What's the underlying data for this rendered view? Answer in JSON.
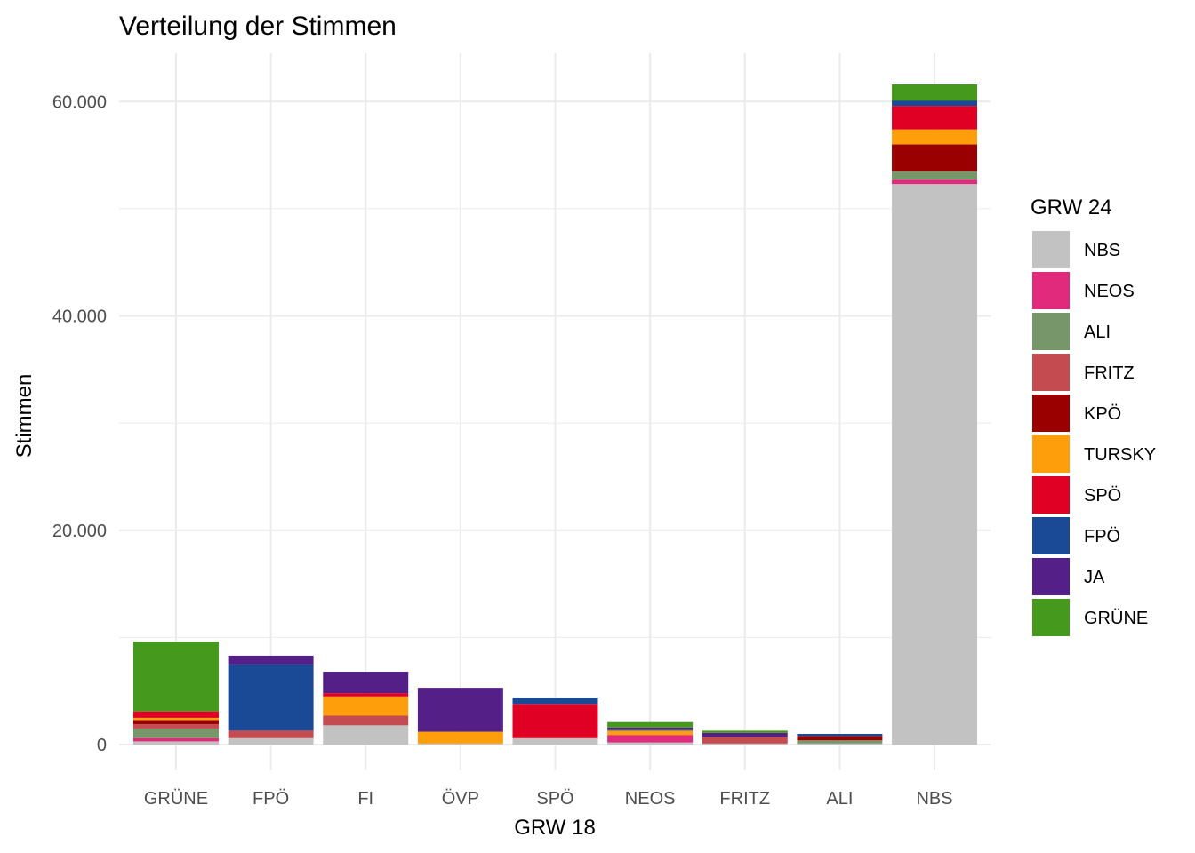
{
  "chart_data": {
    "type": "bar",
    "stacked": true,
    "title": "Verteilung der Stimmen",
    "xlabel": "GRW 18",
    "ylabel": "Stimmen",
    "ylim": [
      -2400,
      64500
    ],
    "yticks": [
      0,
      20000,
      40000,
      60000
    ],
    "ytick_labels": [
      "0",
      "20.000",
      "40.000",
      "60.000"
    ],
    "grid": true,
    "legend": {
      "title": "GRW 24",
      "placement": "right"
    },
    "categories": [
      "GRÜNE",
      "FPÖ",
      "FI",
      "ÖVP",
      "SPÖ",
      "NEOS",
      "FRITZ",
      "ALI",
      "NBS"
    ],
    "series": [
      {
        "name": "NBS",
        "color": "#C2C2C2",
        "values": [
          300,
          600,
          1800,
          100,
          600,
          200,
          100,
          100,
          52300
        ]
      },
      {
        "name": "NEOS",
        "color": "#E12A7B",
        "values": [
          300,
          0,
          0,
          0,
          0,
          700,
          0,
          0,
          400
        ]
      },
      {
        "name": "ALI",
        "color": "#77966A",
        "values": [
          900,
          0,
          0,
          0,
          0,
          0,
          0,
          300,
          800
        ]
      },
      {
        "name": "FRITZ",
        "color": "#C44B4F",
        "values": [
          400,
          700,
          900,
          0,
          0,
          0,
          600,
          0,
          0
        ]
      },
      {
        "name": "KPÖ",
        "color": "#9B0000",
        "values": [
          400,
          0,
          0,
          0,
          0,
          0,
          0,
          400,
          2500
        ]
      },
      {
        "name": "TURSKY",
        "color": "#FF9E0B",
        "values": [
          200,
          0,
          1800,
          1100,
          0,
          400,
          0,
          0,
          1400
        ]
      },
      {
        "name": "SPÖ",
        "color": "#DF0024",
        "values": [
          600,
          0,
          300,
          0,
          3200,
          0,
          0,
          0,
          2200
        ]
      },
      {
        "name": "FPÖ",
        "color": "#1A4A96",
        "values": [
          0,
          6200,
          0,
          0,
          600,
          100,
          0,
          200,
          500
        ]
      },
      {
        "name": "JA",
        "color": "#542087",
        "values": [
          0,
          800,
          2000,
          4100,
          0,
          200,
          400,
          0,
          0
        ]
      },
      {
        "name": "GRÜNE",
        "color": "#45991C",
        "values": [
          6500,
          0,
          0,
          0,
          0,
          500,
          200,
          0,
          1500
        ]
      }
    ]
  }
}
